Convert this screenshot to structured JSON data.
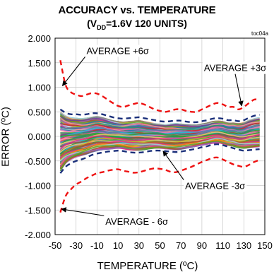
{
  "chart_data": {
    "type": "line",
    "title": "ACCURACY vs. TEMPERATURE",
    "subtitle_prefix": "(V",
    "subtitle_sub": "DD",
    "subtitle_suffix": "=1.6V 120 UNITS)",
    "figure_id": "toc04a",
    "xlabel": "TEMPERATURE (ºC)",
    "ylabel": "ERROR (ºC)",
    "xlim": [
      -50,
      150
    ],
    "ylim": [
      -2.0,
      2.0
    ],
    "x_ticks": [
      "-50",
      "-30",
      "-10",
      "10",
      "30",
      "50",
      "70",
      "90",
      "110",
      "130",
      "150"
    ],
    "x_tick_values": [
      -50,
      -30,
      -10,
      10,
      30,
      50,
      70,
      90,
      110,
      130,
      150
    ],
    "y_ticks": [
      "2.000",
      "1.500",
      "1.000",
      "0.500",
      "0.000",
      "-0.500",
      "-1.000",
      "-1.500",
      "-2.000"
    ],
    "y_tick_values": [
      2.0,
      1.5,
      1.0,
      0.5,
      0.0,
      -0.5,
      -1.0,
      -1.5,
      -2.0
    ],
    "grid": true,
    "x": [
      -45,
      -40,
      -35,
      -30,
      -25,
      -20,
      -15,
      -10,
      -5,
      0,
      5,
      10,
      15,
      20,
      25,
      30,
      35,
      40,
      45,
      50,
      55,
      60,
      65,
      70,
      75,
      80,
      85,
      90,
      95,
      100,
      105,
      110,
      115,
      120,
      125,
      130,
      135,
      140,
      145
    ],
    "series": [
      {
        "name": "AVERAGE +6σ",
        "color": "#ee1111",
        "dashed": true,
        "values": [
          1.55,
          1.05,
          0.9,
          0.85,
          0.82,
          0.85,
          0.88,
          0.87,
          0.82,
          0.75,
          0.68,
          0.62,
          0.6,
          0.63,
          0.66,
          0.68,
          0.65,
          0.6,
          0.55,
          0.52,
          0.5,
          0.52,
          0.55,
          0.55,
          0.52,
          0.5,
          0.5,
          0.55,
          0.6,
          0.65,
          0.68,
          0.65,
          0.6,
          0.6,
          0.55,
          0.6,
          0.68,
          0.75,
          0.75
        ]
      },
      {
        "name": "AVERAGE +3σ",
        "color": "#1a2f7a",
        "dashed": true,
        "values": [
          0.55,
          0.48,
          0.45,
          0.45,
          0.44,
          0.45,
          0.47,
          0.47,
          0.45,
          0.42,
          0.39,
          0.37,
          0.36,
          0.37,
          0.38,
          0.39,
          0.37,
          0.35,
          0.33,
          0.31,
          0.3,
          0.31,
          0.32,
          0.32,
          0.3,
          0.29,
          0.29,
          0.31,
          0.33,
          0.36,
          0.37,
          0.36,
          0.33,
          0.33,
          0.31,
          0.33,
          0.38,
          0.42,
          0.44
        ]
      },
      {
        "name": "AVERAGE -3σ",
        "color": "#1a2f7a",
        "dashed": true,
        "values": [
          -0.75,
          -0.62,
          -0.55,
          -0.5,
          -0.47,
          -0.43,
          -0.38,
          -0.35,
          -0.33,
          -0.31,
          -0.3,
          -0.29,
          -0.3,
          -0.32,
          -0.33,
          -0.33,
          -0.32,
          -0.3,
          -0.29,
          -0.29,
          -0.3,
          -0.31,
          -0.32,
          -0.31,
          -0.29,
          -0.27,
          -0.25,
          -0.22,
          -0.2,
          -0.17,
          -0.16,
          -0.18,
          -0.21,
          -0.24,
          -0.27,
          -0.29,
          -0.28,
          -0.27,
          -0.26
        ]
      },
      {
        "name": "AVERAGE - 6σ",
        "color": "#ee1111",
        "dashed": true,
        "values": [
          -1.55,
          -1.22,
          -1.08,
          -0.98,
          -0.92,
          -0.85,
          -0.8,
          -0.75,
          -0.73,
          -0.7,
          -0.68,
          -0.67,
          -0.7,
          -0.72,
          -0.74,
          -0.73,
          -0.7,
          -0.67,
          -0.65,
          -0.66,
          -0.68,
          -0.72,
          -0.73,
          -0.7,
          -0.66,
          -0.62,
          -0.57,
          -0.52,
          -0.48,
          -0.44,
          -0.43,
          -0.47,
          -0.52,
          -0.57,
          -0.6,
          -0.62,
          -0.58,
          -0.52,
          -0.48
        ]
      }
    ],
    "unit_band": {
      "count": 120,
      "upper": [
        0.5,
        0.42,
        0.38,
        0.37,
        0.36,
        0.37,
        0.39,
        0.4,
        0.38,
        0.35,
        0.32,
        0.3,
        0.29,
        0.3,
        0.31,
        0.32,
        0.3,
        0.28,
        0.26,
        0.25,
        0.24,
        0.25,
        0.26,
        0.25,
        0.24,
        0.23,
        0.23,
        0.25,
        0.27,
        0.3,
        0.31,
        0.3,
        0.27,
        0.27,
        0.26,
        0.28,
        0.33,
        0.36,
        0.38
      ],
      "lower": [
        -0.7,
        -0.55,
        -0.47,
        -0.42,
        -0.39,
        -0.36,
        -0.32,
        -0.29,
        -0.27,
        -0.26,
        -0.25,
        -0.24,
        -0.25,
        -0.27,
        -0.28,
        -0.28,
        -0.27,
        -0.25,
        -0.24,
        -0.24,
        -0.25,
        -0.26,
        -0.27,
        -0.26,
        -0.24,
        -0.22,
        -0.2,
        -0.18,
        -0.16,
        -0.14,
        -0.13,
        -0.15,
        -0.18,
        -0.2,
        -0.23,
        -0.24,
        -0.23,
        -0.22,
        -0.21
      ],
      "palette": [
        "#1f77b4",
        "#ff7f0e",
        "#2ca02c",
        "#d62728",
        "#9467bd",
        "#8c564b",
        "#e377c2",
        "#7f7f7f",
        "#bcbd22",
        "#17becf",
        "#6a3d9a",
        "#b15928",
        "#33a02c",
        "#fb9a99",
        "#a6cee3",
        "#fdbf6f",
        "#1b9e77",
        "#66a61e",
        "#e7298a",
        "#7570b3"
      ]
    },
    "annotations": [
      {
        "text": "AVERAGE +6σ",
        "x": -20,
        "y": 1.75,
        "tx": -43,
        "ty": 1.03
      },
      {
        "text": "AVERAGE +3σ",
        "x": 92,
        "y": 1.4,
        "tx": 128,
        "ty": 0.62
      },
      {
        "text": "AVERAGE -3σ",
        "x": 74,
        "y": -1.0,
        "tx": 53,
        "ty": -0.3
      },
      {
        "text": "AVERAGE - 6σ",
        "x": -2,
        "y": -1.73,
        "tx": -44,
        "ty": -1.48
      }
    ]
  }
}
